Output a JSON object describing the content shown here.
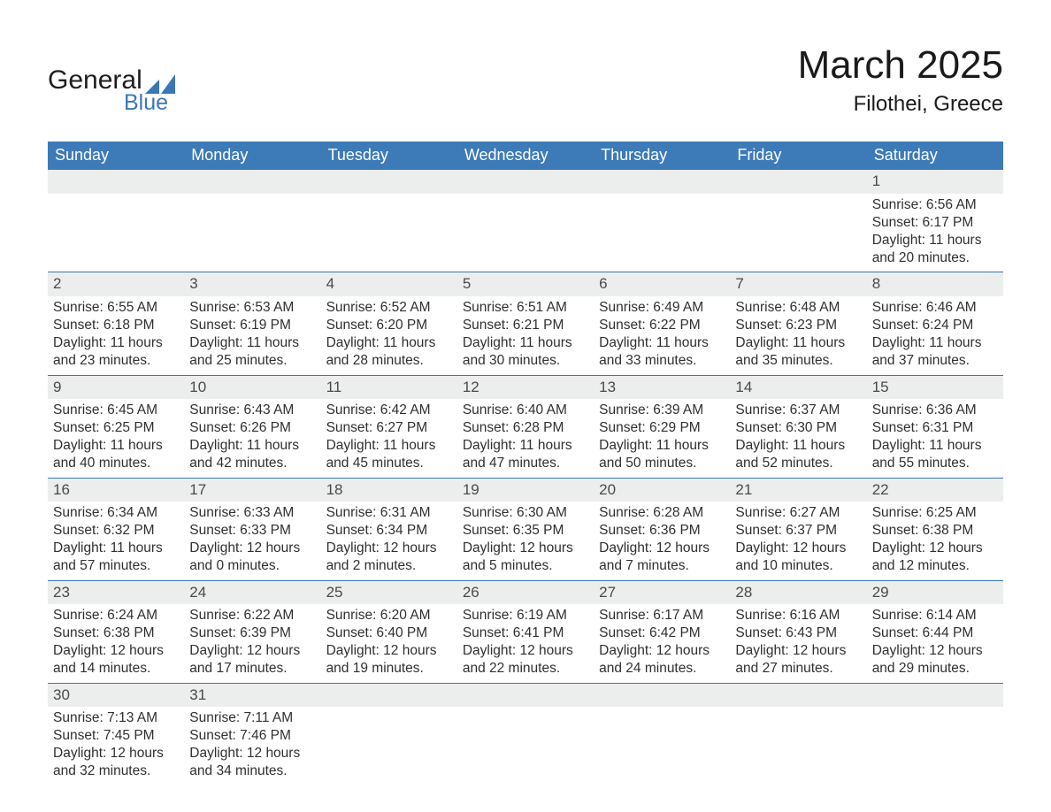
{
  "brand": {
    "line1": "General",
    "line2": "Blue",
    "mark_color": "#3a77b7"
  },
  "header": {
    "month": "March 2025",
    "location": "Filothei, Greece"
  },
  "style": {
    "header_blue": "#3d7ab8",
    "row_separator": "#3a77b7",
    "daynum_bg": "#eceded",
    "text": "#323232",
    "background": "#ffffff",
    "font_family": "Arial, Helvetica, sans-serif",
    "month_fontsize_pt": 33,
    "location_fontsize_pt": 18,
    "weekday_fontsize_pt": 14,
    "body_fontsize_pt": 12
  },
  "weekdays": [
    "Sunday",
    "Monday",
    "Tuesday",
    "Wednesday",
    "Thursday",
    "Friday",
    "Saturday"
  ],
  "weeks": [
    [
      null,
      null,
      null,
      null,
      null,
      null,
      {
        "d": "1",
        "sr": "6:56 AM",
        "ss": "6:17 PM",
        "dlh": "11",
        "dlm": "20"
      }
    ],
    [
      {
        "d": "2",
        "sr": "6:55 AM",
        "ss": "6:18 PM",
        "dlh": "11",
        "dlm": "23"
      },
      {
        "d": "3",
        "sr": "6:53 AM",
        "ss": "6:19 PM",
        "dlh": "11",
        "dlm": "25"
      },
      {
        "d": "4",
        "sr": "6:52 AM",
        "ss": "6:20 PM",
        "dlh": "11",
        "dlm": "28"
      },
      {
        "d": "5",
        "sr": "6:51 AM",
        "ss": "6:21 PM",
        "dlh": "11",
        "dlm": "30"
      },
      {
        "d": "6",
        "sr": "6:49 AM",
        "ss": "6:22 PM",
        "dlh": "11",
        "dlm": "33"
      },
      {
        "d": "7",
        "sr": "6:48 AM",
        "ss": "6:23 PM",
        "dlh": "11",
        "dlm": "35"
      },
      {
        "d": "8",
        "sr": "6:46 AM",
        "ss": "6:24 PM",
        "dlh": "11",
        "dlm": "37"
      }
    ],
    [
      {
        "d": "9",
        "sr": "6:45 AM",
        "ss": "6:25 PM",
        "dlh": "11",
        "dlm": "40"
      },
      {
        "d": "10",
        "sr": "6:43 AM",
        "ss": "6:26 PM",
        "dlh": "11",
        "dlm": "42"
      },
      {
        "d": "11",
        "sr": "6:42 AM",
        "ss": "6:27 PM",
        "dlh": "11",
        "dlm": "45"
      },
      {
        "d": "12",
        "sr": "6:40 AM",
        "ss": "6:28 PM",
        "dlh": "11",
        "dlm": "47"
      },
      {
        "d": "13",
        "sr": "6:39 AM",
        "ss": "6:29 PM",
        "dlh": "11",
        "dlm": "50"
      },
      {
        "d": "14",
        "sr": "6:37 AM",
        "ss": "6:30 PM",
        "dlh": "11",
        "dlm": "52"
      },
      {
        "d": "15",
        "sr": "6:36 AM",
        "ss": "6:31 PM",
        "dlh": "11",
        "dlm": "55"
      }
    ],
    [
      {
        "d": "16",
        "sr": "6:34 AM",
        "ss": "6:32 PM",
        "dlh": "11",
        "dlm": "57"
      },
      {
        "d": "17",
        "sr": "6:33 AM",
        "ss": "6:33 PM",
        "dlh": "12",
        "dlm": "0"
      },
      {
        "d": "18",
        "sr": "6:31 AM",
        "ss": "6:34 PM",
        "dlh": "12",
        "dlm": "2"
      },
      {
        "d": "19",
        "sr": "6:30 AM",
        "ss": "6:35 PM",
        "dlh": "12",
        "dlm": "5"
      },
      {
        "d": "20",
        "sr": "6:28 AM",
        "ss": "6:36 PM",
        "dlh": "12",
        "dlm": "7"
      },
      {
        "d": "21",
        "sr": "6:27 AM",
        "ss": "6:37 PM",
        "dlh": "12",
        "dlm": "10"
      },
      {
        "d": "22",
        "sr": "6:25 AM",
        "ss": "6:38 PM",
        "dlh": "12",
        "dlm": "12"
      }
    ],
    [
      {
        "d": "23",
        "sr": "6:24 AM",
        "ss": "6:38 PM",
        "dlh": "12",
        "dlm": "14"
      },
      {
        "d": "24",
        "sr": "6:22 AM",
        "ss": "6:39 PM",
        "dlh": "12",
        "dlm": "17"
      },
      {
        "d": "25",
        "sr": "6:20 AM",
        "ss": "6:40 PM",
        "dlh": "12",
        "dlm": "19"
      },
      {
        "d": "26",
        "sr": "6:19 AM",
        "ss": "6:41 PM",
        "dlh": "12",
        "dlm": "22"
      },
      {
        "d": "27",
        "sr": "6:17 AM",
        "ss": "6:42 PM",
        "dlh": "12",
        "dlm": "24"
      },
      {
        "d": "28",
        "sr": "6:16 AM",
        "ss": "6:43 PM",
        "dlh": "12",
        "dlm": "27"
      },
      {
        "d": "29",
        "sr": "6:14 AM",
        "ss": "6:44 PM",
        "dlh": "12",
        "dlm": "29"
      }
    ],
    [
      {
        "d": "30",
        "sr": "7:13 AM",
        "ss": "7:45 PM",
        "dlh": "12",
        "dlm": "32"
      },
      {
        "d": "31",
        "sr": "7:11 AM",
        "ss": "7:46 PM",
        "dlh": "12",
        "dlm": "34"
      },
      null,
      null,
      null,
      null,
      null
    ]
  ],
  "labels": {
    "sunrise": "Sunrise: ",
    "sunset": "Sunset: ",
    "daylight_a": "Daylight: ",
    "daylight_b": " hours",
    "daylight_c": "and ",
    "daylight_d": " minutes."
  }
}
